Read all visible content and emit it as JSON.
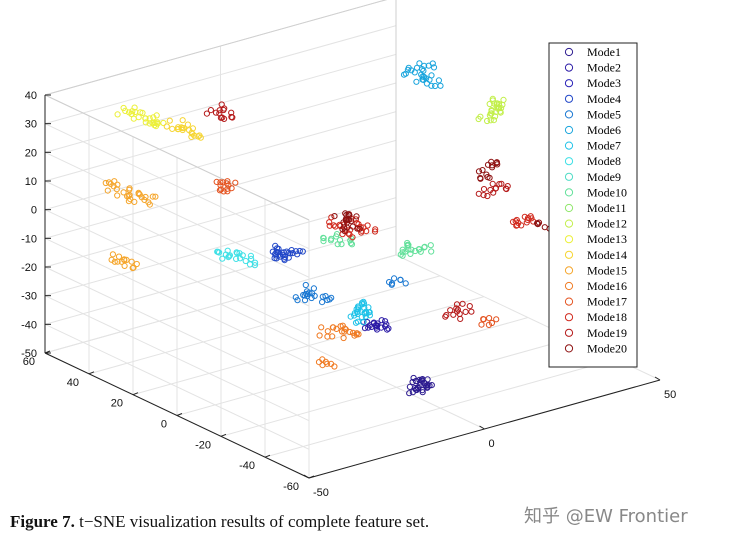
{
  "caption": {
    "label": "Figure 7.",
    "text": "t−SNE visualization results of complete feature set."
  },
  "watermark": {
    "text": "知乎 @EW Frontier"
  },
  "chart_data": {
    "type": "scatter",
    "projection": "3d",
    "title": "",
    "xlabel": "",
    "ylabel": "",
    "zlabel": "",
    "xlim": [
      -50,
      50
    ],
    "ylim": [
      -60,
      60
    ],
    "zlim": [
      -50,
      40
    ],
    "x_ticks": [
      "-50",
      "0",
      "50"
    ],
    "y_ticks": [
      "-60",
      "-40",
      "-20",
      "0",
      "20",
      "40",
      "60"
    ],
    "z_ticks": [
      "-50",
      "-40",
      "-30",
      "-20",
      "-10",
      "0",
      "10",
      "20",
      "30",
      "40"
    ],
    "grid": true,
    "marker": "open-circle",
    "legend_position": "top-right",
    "series": [
      {
        "name": "Mode1",
        "color": "#2b1a8f"
      },
      {
        "name": "Mode2",
        "color": "#2b1aa6"
      },
      {
        "name": "Mode3",
        "color": "#2a23b8"
      },
      {
        "name": "Mode4",
        "color": "#2147c8"
      },
      {
        "name": "Mode5",
        "color": "#1a78d2"
      },
      {
        "name": "Mode6",
        "color": "#1aa5dd"
      },
      {
        "name": "Mode7",
        "color": "#1ec2e8"
      },
      {
        "name": "Mode8",
        "color": "#3ee0e6"
      },
      {
        "name": "Mode9",
        "color": "#4fdcc6"
      },
      {
        "name": "Mode10",
        "color": "#62e09a"
      },
      {
        "name": "Mode11",
        "color": "#8fe66a"
      },
      {
        "name": "Mode12",
        "color": "#c2ef4a"
      },
      {
        "name": "Mode13",
        "color": "#ecf03a"
      },
      {
        "name": "Mode14",
        "color": "#f6d531"
      },
      {
        "name": "Mode15",
        "color": "#f5a52a"
      },
      {
        "name": "Mode16",
        "color": "#f07a22"
      },
      {
        "name": "Mode17",
        "color": "#e4521f"
      },
      {
        "name": "Mode18",
        "color": "#d12a1e"
      },
      {
        "name": "Mode19",
        "color": "#b51a1a"
      },
      {
        "name": "Mode20",
        "color": "#8e1212"
      }
    ],
    "clusters": [
      {
        "series": 0,
        "points": [
          [
            -8,
            -42,
            -40
          ],
          [
            -6,
            -40,
            -39
          ],
          [
            -4,
            -41,
            -41
          ],
          [
            -7,
            -43,
            -38
          ]
        ]
      },
      {
        "series": 1,
        "points": [
          [
            -4,
            -18,
            -28
          ],
          [
            -2,
            -16,
            -29
          ],
          [
            -5,
            -17,
            -27
          ]
        ]
      },
      {
        "series": 3,
        "points": [
          [
            -14,
            10,
            -10
          ],
          [
            -12,
            12,
            -12
          ],
          [
            -10,
            9,
            -11
          ],
          [
            -13,
            11,
            -9
          ]
        ]
      },
      {
        "series": 4,
        "points": [
          [
            -20,
            -10,
            -15
          ],
          [
            -18,
            -8,
            -14
          ],
          [
            -16,
            -12,
            -16
          ],
          [
            -6,
            -30,
            -8
          ]
        ]
      },
      {
        "series": 5,
        "points": [
          [
            40,
            30,
            30
          ],
          [
            38,
            28,
            27
          ],
          [
            36,
            31,
            29
          ],
          [
            40,
            27,
            26
          ]
        ]
      },
      {
        "series": 6,
        "points": [
          [
            -10,
            -20,
            -20
          ],
          [
            -8,
            -18,
            -22
          ],
          [
            -12,
            -22,
            -21
          ],
          [
            -9,
            -19,
            -19
          ]
        ]
      },
      {
        "series": 7,
        "points": [
          [
            -14,
            30,
            -18
          ],
          [
            -12,
            28,
            -19
          ],
          [
            -16,
            32,
            -17
          ]
        ]
      },
      {
        "series": 9,
        "points": [
          [
            24,
            10,
            -20
          ],
          [
            22,
            12,
            -22
          ],
          [
            26,
            8,
            -21
          ],
          [
            8,
            22,
            -16
          ],
          [
            10,
            20,
            -17
          ]
        ]
      },
      {
        "series": 11,
        "points": [
          [
            58,
            26,
            10
          ],
          [
            56,
            24,
            12
          ],
          [
            60,
            28,
            11
          ],
          [
            54,
            25,
            9
          ]
        ]
      },
      {
        "series": 12,
        "points": [
          [
            -30,
            50,
            30
          ],
          [
            -28,
            48,
            28
          ],
          [
            -32,
            52,
            31
          ],
          [
            -26,
            46,
            26
          ]
        ]
      },
      {
        "series": 13,
        "points": [
          [
            -20,
            44,
            24
          ],
          [
            -18,
            42,
            22
          ],
          [
            -22,
            46,
            25
          ]
        ]
      },
      {
        "series": 14,
        "points": [
          [
            -40,
            40,
            10
          ],
          [
            -38,
            38,
            8
          ],
          [
            -42,
            42,
            12
          ],
          [
            -36,
            36,
            7
          ],
          [
            -44,
            36,
            -10
          ],
          [
            -42,
            34,
            -12
          ]
        ]
      },
      {
        "series": 15,
        "points": [
          [
            -10,
            -10,
            -30
          ],
          [
            -8,
            -12,
            -32
          ],
          [
            -12,
            -8,
            -31
          ],
          [
            -20,
            -20,
            -35
          ]
        ]
      },
      {
        "series": 16,
        "points": [
          [
            -30,
            10,
            20
          ],
          [
            -28,
            12,
            18
          ],
          [
            20,
            -30,
            -30
          ]
        ]
      },
      {
        "series": 17,
        "points": [
          [
            -2,
            -2,
            -2
          ],
          [
            0,
            0,
            0
          ],
          [
            2,
            -4,
            -1
          ],
          [
            -4,
            2,
            1
          ],
          [
            42,
            -10,
            -10
          ],
          [
            44,
            -8,
            -12
          ]
        ]
      },
      {
        "series": 18,
        "points": [
          [
            -14,
            40,
            30
          ],
          [
            -12,
            38,
            28
          ],
          [
            16,
            -20,
            -30
          ],
          [
            18,
            -22,
            -28
          ],
          [
            36,
            -4,
            0
          ],
          [
            38,
            -6,
            2
          ]
        ]
      },
      {
        "series": 19,
        "points": [
          [
            -2,
            2,
            2
          ],
          [
            1,
            3,
            0
          ],
          [
            -1,
            -1,
            -2
          ],
          [
            38,
            0,
            4
          ],
          [
            40,
            2,
            6
          ],
          [
            46,
            -14,
            -12
          ]
        ]
      }
    ]
  }
}
